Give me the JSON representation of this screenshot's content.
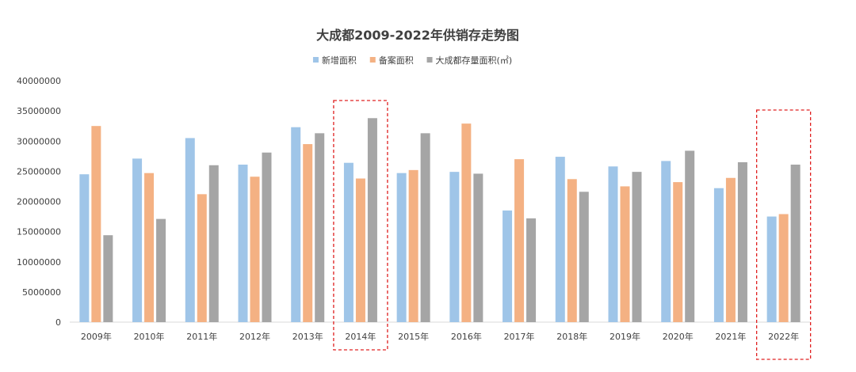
{
  "chart_data": {
    "type": "bar",
    "title": "大成都2009-2022年供销存走势图",
    "xlabel": "",
    "ylabel": "",
    "ylim": [
      0,
      40000000
    ],
    "yticks": [
      0,
      5000000,
      10000000,
      15000000,
      20000000,
      25000000,
      30000000,
      35000000,
      40000000
    ],
    "grid": false,
    "legend_position": "top-center",
    "categories": [
      "2009年",
      "2010年",
      "2011年",
      "2012年",
      "2013年",
      "2014年",
      "2015年",
      "2016年",
      "2017年",
      "2018年",
      "2019年",
      "2020年",
      "2021年",
      "2022年"
    ],
    "series": [
      {
        "name": "新增面积",
        "color": "#9fc5e8",
        "values": [
          24500000,
          27100000,
          30500000,
          26100000,
          32300000,
          26400000,
          24700000,
          24900000,
          18500000,
          27400000,
          25800000,
          26700000,
          22200000,
          17500000
        ]
      },
      {
        "name": "备案面积",
        "color": "#f4b183",
        "values": [
          32500000,
          24700000,
          21200000,
          24100000,
          29500000,
          23800000,
          25200000,
          32900000,
          27000000,
          23700000,
          22500000,
          23200000,
          23900000,
          17900000
        ]
      },
      {
        "name": "大成都存量面积(㎡)",
        "color": "#a5a5a5",
        "values": [
          14400000,
          17100000,
          26000000,
          28100000,
          31300000,
          33800000,
          31300000,
          24600000,
          17200000,
          21600000,
          24900000,
          28400000,
          26500000,
          26100000
        ]
      }
    ],
    "highlighted_categories": [
      "2014年",
      "2022年"
    ],
    "highlight_color": "#e02020"
  }
}
